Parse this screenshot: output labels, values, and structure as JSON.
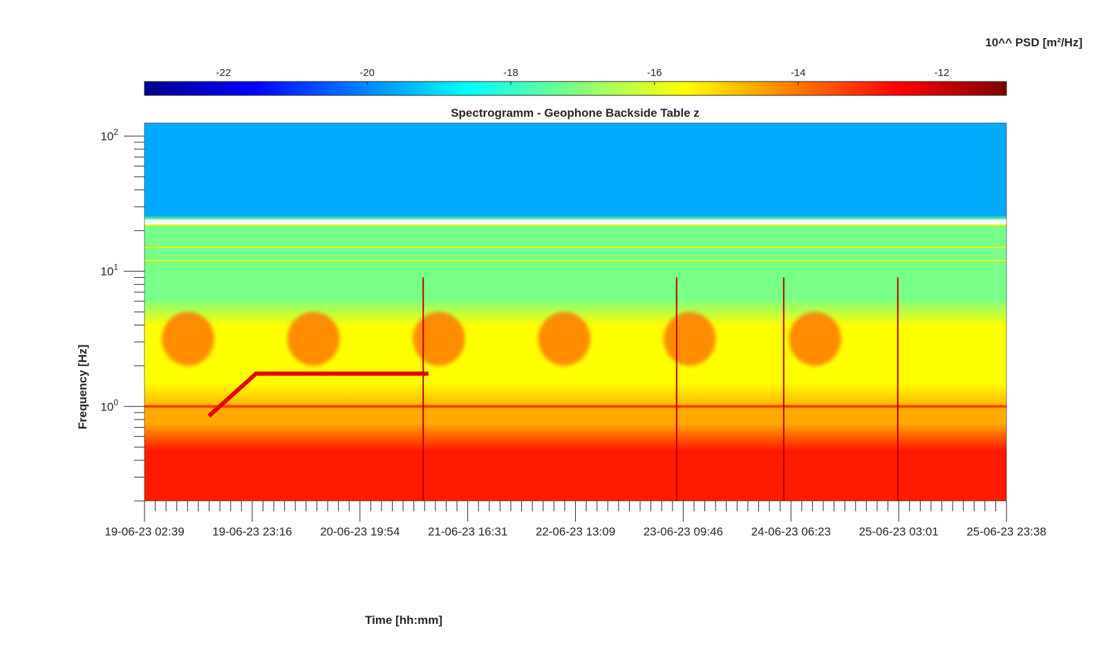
{
  "chart_data": {
    "type": "heatmap",
    "title": "Spectrogramm - Geophone Backside Table z",
    "xlabel": "Time [hh:mm]",
    "ylabel": "Frequency [Hz]",
    "colorbar_label": "10^^ PSD [m²/Hz]",
    "colormap": "jet",
    "clim": [
      -23.1,
      -11.1
    ],
    "colorbar_ticks": [
      -22,
      -20,
      -18,
      -16,
      -14,
      -12
    ],
    "colorbar_tick_labels": [
      "-22",
      "-20",
      "-18",
      "-16",
      "-14",
      "-12"
    ],
    "y_scale": "log",
    "ylim_hz": [
      0.2,
      125
    ],
    "y_ticks": [
      {
        "value": 1,
        "base": "10",
        "exponent": "0"
      },
      {
        "value": 10,
        "base": "10",
        "exponent": "1"
      },
      {
        "value": 100,
        "base": "10",
        "exponent": "2"
      }
    ],
    "x_tick_labels": [
      "19-06-23 02:39",
      "19-06-23 23:16",
      "20-06-23 19:54",
      "21-06-23 16:31",
      "22-06-23 13:09",
      "23-06-23 09:46",
      "24-06-23 06:23",
      "25-06-23 03:01",
      "25-06-23 23:38"
    ],
    "xlim": [
      "19-06-23 02:39",
      "25-06-23 23:38"
    ],
    "bands": [
      {
        "hz_from": 25,
        "hz_to": 125,
        "log10_psd": -19.6,
        "note": "high-frequency band"
      },
      {
        "hz_from": 5,
        "hz_to": 22,
        "log10_psd": -17.2
      },
      {
        "hz_from": 1.2,
        "hz_to": 5,
        "log10_psd": -15.6
      },
      {
        "hz_from": 0.6,
        "hz_to": 1.2,
        "log10_psd": -14.6
      },
      {
        "hz_from": 0.2,
        "hz_to": 0.6,
        "log10_psd": -12.9
      }
    ],
    "tonal_lines_hz": [
      22,
      15,
      12,
      1.0
    ],
    "daily_activity": [
      {
        "start": "19-06-23 06:00",
        "end": "19-06-23 16:00",
        "hz_from": 2,
        "hz_to": 5
      },
      {
        "start": "20-06-23 06:00",
        "end": "20-06-23 16:00",
        "hz_from": 2,
        "hz_to": 5
      },
      {
        "start": "21-06-23 06:00",
        "end": "21-06-23 16:00",
        "hz_from": 2,
        "hz_to": 5
      },
      {
        "start": "22-06-23 06:00",
        "end": "22-06-23 16:00",
        "hz_from": 2,
        "hz_to": 5
      },
      {
        "start": "23-06-23 06:00",
        "end": "23-06-23 16:00",
        "hz_from": 2,
        "hz_to": 5
      },
      {
        "start": "24-06-23 06:00",
        "end": "24-06-23 16:00",
        "hz_from": 2,
        "hz_to": 5
      }
    ],
    "red_trace": [
      {
        "time": "19-06-23 15:00",
        "hz": 0.85
      },
      {
        "time": "20-06-23 00:00",
        "hz": 1.75
      },
      {
        "time": "21-06-23 09:00",
        "hz": 1.75
      }
    ],
    "broadband_spikes": [
      "21-06-23 08:00",
      "23-06-23 08:30",
      "24-06-23 05:00",
      "25-06-23 02:50"
    ]
  }
}
